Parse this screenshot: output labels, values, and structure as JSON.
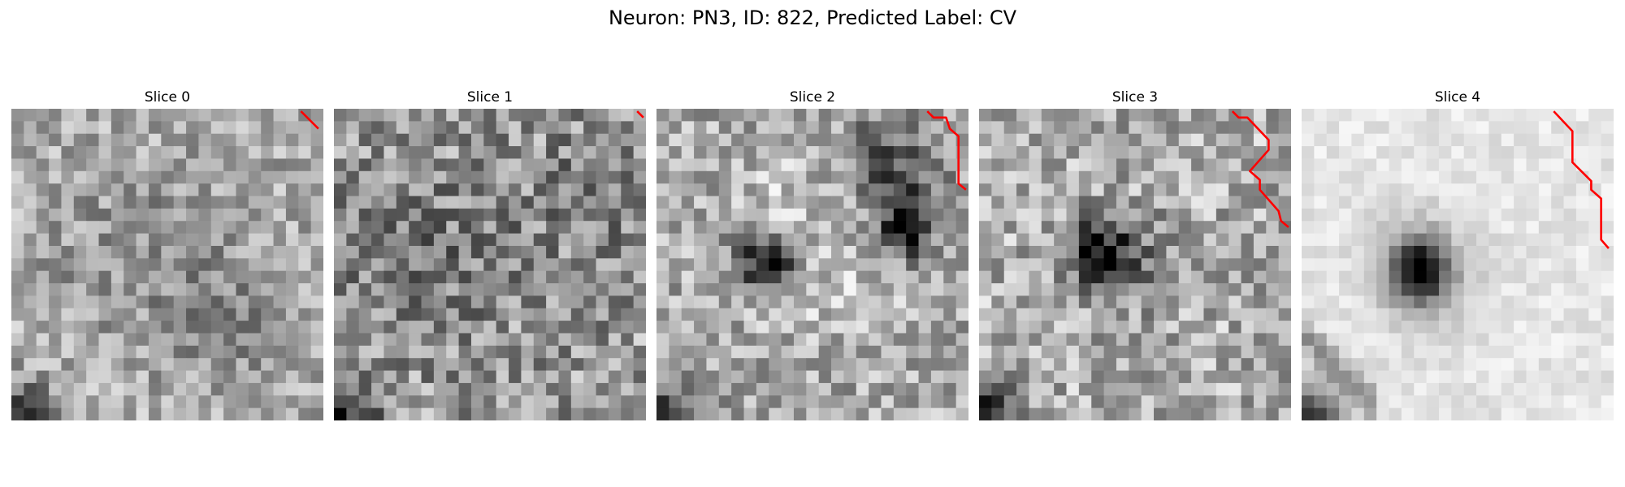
{
  "figure": {
    "title": "Neuron: PN3, ID: 822, Predicted Label: CV"
  },
  "slices": [
    {
      "title": "Slice 0"
    },
    {
      "title": "Slice 1"
    },
    {
      "title": "Slice 2"
    },
    {
      "title": "Slice 3"
    },
    {
      "title": "Slice 4"
    }
  ],
  "colors": {
    "contour": "#ff0000"
  }
}
